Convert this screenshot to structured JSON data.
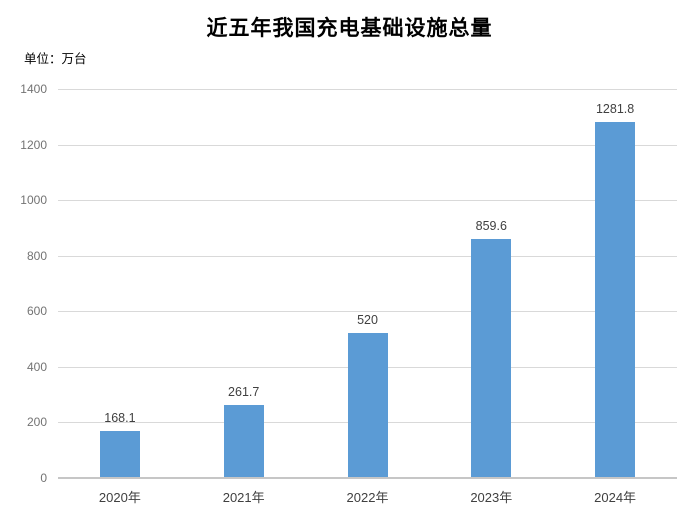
{
  "title": "近五年我国充电基础设施总量",
  "unit_label": "单位：万台",
  "colors": {
    "bar": "#5b9bd5",
    "gridline": "#d9d9d9",
    "axis_line": "#c6c6c6",
    "tick_label": "#737373",
    "data_label": "#404040",
    "title": "#000000",
    "background": "#ffffff"
  },
  "chart_data": {
    "type": "bar",
    "title": "近五年我国充电基础设施总量",
    "unit": "单位：万台",
    "categories": [
      "2020年",
      "2021年",
      "2022年",
      "2023年",
      "2024年"
    ],
    "values": [
      168.1,
      261.7,
      520,
      859.6,
      1281.8
    ],
    "value_labels": [
      "168.1",
      "261.7",
      "520",
      "859.6",
      "1281.8"
    ],
    "xlabel": "",
    "ylabel": "万台",
    "ylim": [
      0,
      1400
    ],
    "ytick_interval": 200,
    "yticks": [
      0,
      200,
      400,
      600,
      800,
      1000,
      1200,
      1400
    ],
    "grid": true,
    "legend": false
  }
}
